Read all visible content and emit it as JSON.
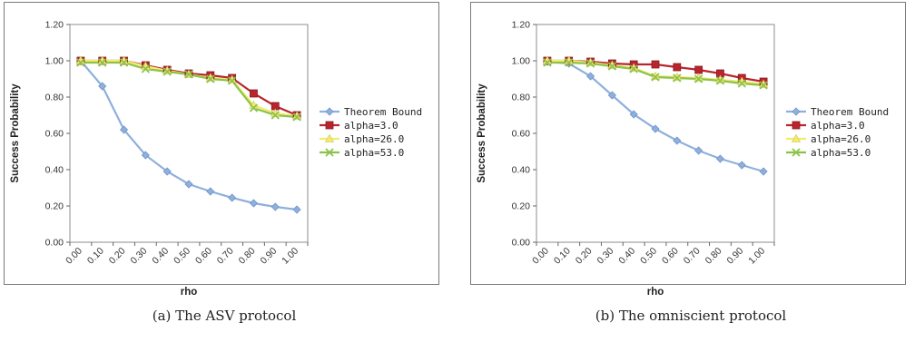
{
  "colors": {
    "theorem": "#8fb0dd",
    "a3": "#b8252e",
    "a26": "#f3ec6a",
    "a53": "#8bc34a"
  },
  "chart_data": [
    {
      "type": "line",
      "caption": "(a)  The ASV protocol",
      "xlabel": "rho",
      "ylabel": "Success Probability",
      "categories": [
        "0.00",
        "0.10",
        "0.20",
        "0.30",
        "0.40",
        "0.50",
        "0.60",
        "0.70",
        "0.80",
        "0.90",
        "1.00"
      ],
      "ylim": [
        0,
        1.2
      ],
      "yticks": [
        "0.00",
        "0.20",
        "0.40",
        "0.60",
        "0.80",
        "1.00",
        "1.20"
      ],
      "legend_position": "right",
      "series": [
        {
          "name": "Theorem Bound",
          "marker": "diamond",
          "color": "#8fb0dd",
          "values": [
            1.0,
            0.86,
            0.62,
            0.48,
            0.39,
            0.32,
            0.28,
            0.245,
            0.215,
            0.195,
            0.18
          ]
        },
        {
          "name": "alpha=3.0",
          "marker": "square",
          "color": "#b8252e",
          "values": [
            1.0,
            1.0,
            1.0,
            0.975,
            0.95,
            0.93,
            0.92,
            0.905,
            0.82,
            0.75,
            0.7
          ]
        },
        {
          "name": "alpha=26.0",
          "marker": "triangle",
          "color": "#f3ec6a",
          "values": [
            1.0,
            1.0,
            1.0,
            0.97,
            0.945,
            0.925,
            0.905,
            0.895,
            0.755,
            0.71,
            0.695
          ]
        },
        {
          "name": "alpha=53.0",
          "marker": "x",
          "color": "#8bc34a",
          "values": [
            0.99,
            0.99,
            0.99,
            0.955,
            0.94,
            0.925,
            0.9,
            0.89,
            0.74,
            0.7,
            0.69
          ]
        }
      ]
    },
    {
      "type": "line",
      "caption": "(b)  The omniscient protocol",
      "xlabel": "rho",
      "ylabel": "Success Probability",
      "categories": [
        "0.00",
        "0.10",
        "0.20",
        "0.30",
        "0.40",
        "0.50",
        "0.60",
        "0.70",
        "0.80",
        "0.90",
        "1.00"
      ],
      "ylim": [
        0,
        1.2
      ],
      "yticks": [
        "0.00",
        "0.20",
        "0.40",
        "0.60",
        "0.80",
        "1.00",
        "1.20"
      ],
      "legend_position": "right",
      "series": [
        {
          "name": "Theorem Bound",
          "marker": "diamond",
          "color": "#8fb0dd",
          "values": [
            0.995,
            0.985,
            0.915,
            0.81,
            0.705,
            0.625,
            0.56,
            0.505,
            0.46,
            0.425,
            0.39
          ]
        },
        {
          "name": "alpha=3.0",
          "marker": "square",
          "color": "#b8252e",
          "values": [
            1.0,
            1.0,
            0.995,
            0.985,
            0.98,
            0.98,
            0.965,
            0.95,
            0.93,
            0.905,
            0.885
          ]
        },
        {
          "name": "alpha=26.0",
          "marker": "triangle",
          "color": "#f3ec6a",
          "values": [
            1.0,
            1.0,
            0.99,
            0.975,
            0.96,
            0.915,
            0.91,
            0.905,
            0.895,
            0.885,
            0.87
          ]
        },
        {
          "name": "alpha=53.0",
          "marker": "x",
          "color": "#8bc34a",
          "values": [
            0.99,
            0.99,
            0.985,
            0.97,
            0.955,
            0.91,
            0.905,
            0.9,
            0.89,
            0.875,
            0.865
          ]
        }
      ]
    }
  ]
}
